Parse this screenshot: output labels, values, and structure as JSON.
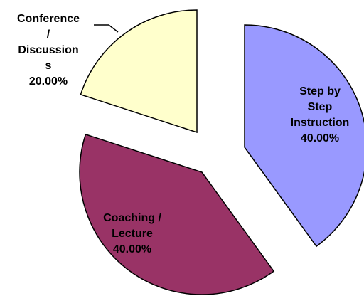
{
  "chart_data": {
    "type": "pie",
    "exploded": true,
    "start_angle_deg": 0,
    "direction": "clockwise",
    "slices": [
      {
        "name": "Step by Step Instruction",
        "value": 40.0,
        "percent_label": "40.00%",
        "label_lines": [
          "Step by",
          "Step",
          "Instruction",
          "40.00%"
        ],
        "color": "#9999ff"
      },
      {
        "name": "Coaching / Lecture",
        "value": 40.0,
        "percent_label": "40.00%",
        "label_lines": [
          "Coaching /",
          "Lecture",
          "40.00%"
        ],
        "color": "#993366"
      },
      {
        "name": "Conference / Discussions",
        "value": 20.0,
        "percent_label": "20.00%",
        "label_lines": [
          "Conference",
          "/",
          "Discussion",
          "s",
          "20.00%"
        ],
        "color": "#ffffcc"
      }
    ]
  }
}
